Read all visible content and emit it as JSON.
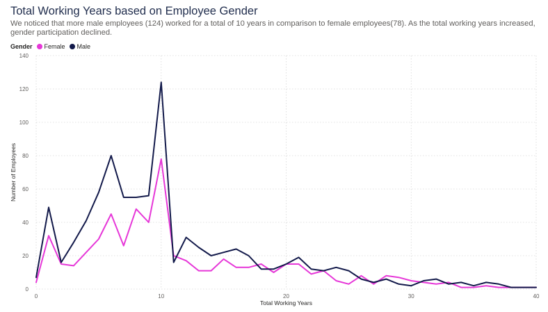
{
  "header": {
    "title": "Total Working Years based on Employee Gender",
    "subtitle": "We noticed that more male employees (124) worked for a total of 10 years in comparison to female employees(78). As the total working years increased, gender participation declined."
  },
  "legend": {
    "title": "Gender",
    "items": [
      {
        "label": "Female",
        "color": "#e637d8"
      },
      {
        "label": "Male",
        "color": "#12194a"
      }
    ]
  },
  "chart_data": {
    "type": "line",
    "title": "Total Working Years based on Employee Gender",
    "xlabel": "Total Working Years",
    "ylabel": "Number of Employees",
    "xlim": [
      0,
      40
    ],
    "ylim": [
      0,
      140
    ],
    "xticks": [
      0,
      10,
      20,
      30,
      40
    ],
    "yticks": [
      0,
      20,
      40,
      60,
      80,
      100,
      120,
      140
    ],
    "grid": true,
    "legend_position": "top-left",
    "x": [
      0,
      1,
      2,
      3,
      4,
      5,
      6,
      7,
      8,
      9,
      10,
      11,
      12,
      13,
      14,
      15,
      16,
      17,
      18,
      19,
      20,
      21,
      22,
      23,
      24,
      25,
      26,
      27,
      28,
      29,
      30,
      31,
      32,
      33,
      34,
      35,
      36,
      37,
      38,
      39,
      40
    ],
    "series": [
      {
        "name": "Female",
        "color": "#e637d8",
        "values": [
          4,
          32,
          15,
          14,
          22,
          30,
          45,
          26,
          48,
          40,
          78,
          20,
          17,
          11,
          11,
          18,
          13,
          13,
          15,
          10,
          15,
          15,
          9,
          11,
          5,
          3,
          8,
          3,
          8,
          7,
          5,
          4,
          3,
          4,
          1,
          1,
          2,
          1,
          1,
          1,
          1
        ]
      },
      {
        "name": "Male",
        "color": "#12194a",
        "values": [
          7,
          49,
          16,
          28,
          41,
          58,
          80,
          55,
          55,
          56,
          124,
          16,
          31,
          25,
          20,
          22,
          24,
          20,
          12,
          12,
          15,
          19,
          12,
          11,
          13,
          11,
          6,
          4,
          6,
          3,
          2,
          5,
          6,
          3,
          4,
          2,
          4,
          3,
          1,
          1,
          1
        ]
      }
    ]
  }
}
